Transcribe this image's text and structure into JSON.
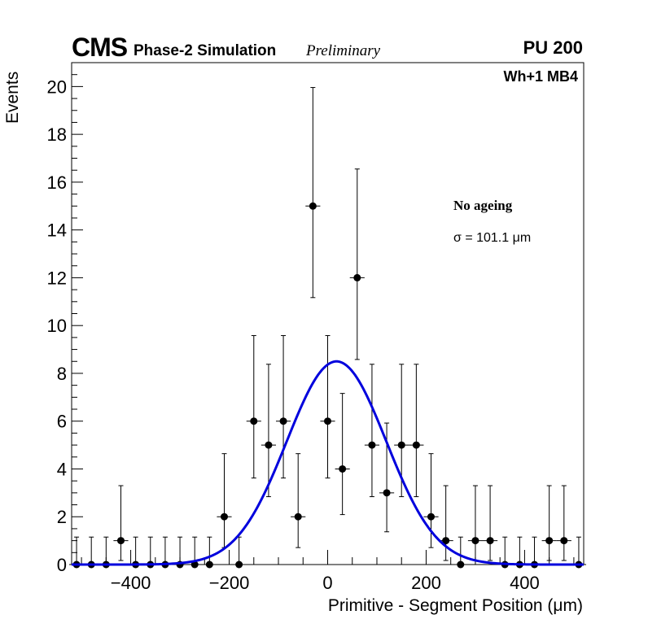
{
  "chart_data": {
    "type": "scatter",
    "title": "CMS Phase-2 Simulation Preliminary",
    "header": {
      "experiment": "CMS",
      "subtitle": "Phase-2 Simulation",
      "status": "Preliminary",
      "pileup": "PU 200",
      "chamber": "Wh+1 MB4"
    },
    "annotations": {
      "condition": "No ageing",
      "fit_result": "σ = 101.1 μm"
    },
    "xlabel": "Primitive - Segment Position (μm)",
    "ylabel": "Events",
    "xlim": [
      -520,
      520
    ],
    "ylim": [
      0,
      21
    ],
    "xticks": [
      -400,
      -200,
      0,
      200,
      400
    ],
    "yticks": [
      0,
      2,
      4,
      6,
      8,
      10,
      12,
      14,
      16,
      18,
      20
    ],
    "bin_width": 30,
    "series": [
      {
        "name": "Data",
        "x": [
          -510,
          -480,
          -450,
          -420,
          -390,
          -360,
          -330,
          -300,
          -270,
          -240,
          -210,
          -180,
          -150,
          -120,
          -90,
          -60,
          -30,
          0,
          30,
          60,
          90,
          120,
          150,
          180,
          210,
          240,
          270,
          300,
          330,
          360,
          390,
          420,
          450,
          480,
          510
        ],
        "y": [
          0,
          0,
          0,
          1,
          0,
          0,
          0,
          0,
          0,
          0,
          2,
          0,
          6,
          5,
          6,
          2,
          15,
          6,
          4,
          12,
          5,
          3,
          5,
          5,
          2,
          1,
          0,
          1,
          1,
          0,
          0,
          0,
          1,
          1,
          0
        ],
        "err_low": [
          0,
          0,
          0,
          0.83,
          0,
          0,
          0,
          0,
          0,
          0,
          1.29,
          0,
          2.38,
          2.16,
          2.38,
          1.29,
          3.83,
          2.38,
          1.91,
          3.42,
          2.16,
          1.63,
          2.16,
          2.16,
          1.29,
          0.83,
          0,
          0.83,
          0.83,
          0,
          0,
          0,
          0.83,
          0.83,
          0
        ],
        "err_high": [
          1.15,
          1.15,
          1.15,
          2.3,
          1.15,
          1.15,
          1.15,
          1.15,
          1.15,
          1.15,
          2.64,
          1.15,
          3.58,
          3.38,
          3.58,
          2.64,
          4.96,
          3.58,
          3.16,
          4.55,
          3.38,
          2.92,
          3.38,
          3.38,
          2.64,
          2.3,
          1.15,
          2.3,
          2.3,
          1.15,
          1.15,
          1.15,
          2.3,
          2.3,
          1.15
        ],
        "color": "#000000"
      },
      {
        "name": "Gaussian fit",
        "model": "gaussian",
        "amplitude": 8.5,
        "mean": 18,
        "sigma": 101.1,
        "color": "#0000dd"
      }
    ]
  }
}
